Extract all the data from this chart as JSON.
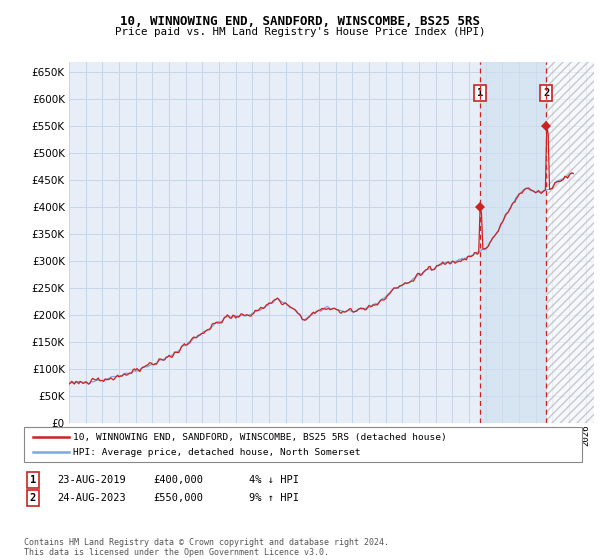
{
  "title": "10, WINNOWING END, SANDFORD, WINSCOMBE, BS25 5RS",
  "subtitle": "Price paid vs. HM Land Registry's House Price Index (HPI)",
  "yticks": [
    0,
    50000,
    100000,
    150000,
    200000,
    250000,
    300000,
    350000,
    400000,
    450000,
    500000,
    550000,
    600000,
    650000
  ],
  "ylim": [
    0,
    670000
  ],
  "xlim_start": 1995.0,
  "xlim_end": 2026.5,
  "hpi_color": "#7aabdc",
  "price_color": "#cc2222",
  "marker_color": "#cc2222",
  "bg_color": "#e8eef8",
  "grid_color": "#c8d4e8",
  "shade_color": "#d0e0f0",
  "hatch_start": 2023.65,
  "sale1_x": 2019.64,
  "sale1_y": 400000,
  "sale2_x": 2023.64,
  "sale2_y": 550000,
  "legend1": "10, WINNOWING END, SANDFORD, WINSCOMBE, BS25 5RS (detached house)",
  "legend2": "HPI: Average price, detached house, North Somerset",
  "ann1_num": "1",
  "ann1_date": "23-AUG-2019",
  "ann1_price": "£400,000",
  "ann1_hpi": "4% ↓ HPI",
  "ann2_num": "2",
  "ann2_date": "24-AUG-2023",
  "ann2_price": "£550,000",
  "ann2_hpi": "9% ↑ HPI",
  "footer": "Contains HM Land Registry data © Crown copyright and database right 2024.\nThis data is licensed under the Open Government Licence v3.0."
}
